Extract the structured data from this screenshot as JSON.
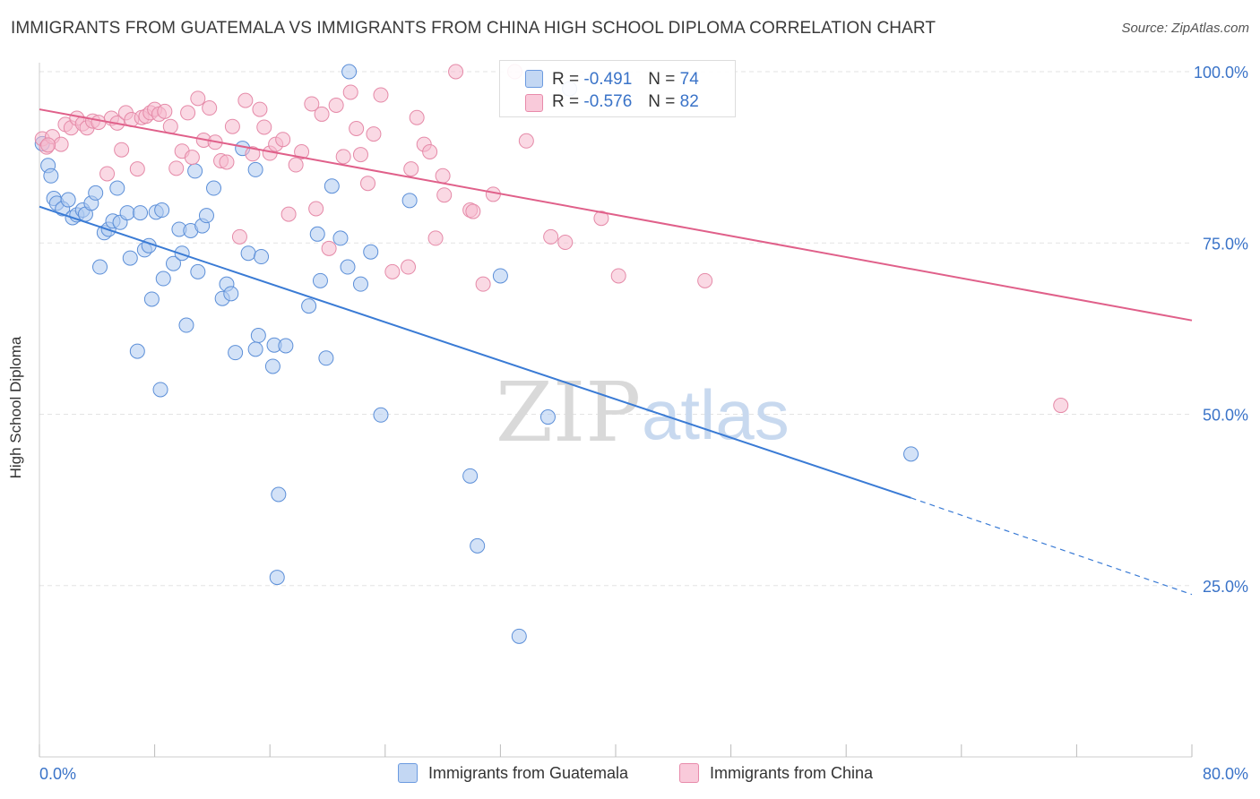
{
  "title": "IMMIGRANTS FROM GUATEMALA VS IMMIGRANTS FROM CHINA HIGH SCHOOL DIPLOMA CORRELATION CHART",
  "source": "Source: ZipAtlas.com",
  "watermark": {
    "zip": "ZIP",
    "atlas": "atlas"
  },
  "colors": {
    "blue": "#3a7bd5",
    "blue_fill": "#aecbf0",
    "pink": "#e0608a",
    "pink_fill": "#f6b9cd",
    "tick_label": "#3a73c8"
  },
  "legend": {
    "r_label": "R =",
    "n_label": "N =",
    "guatemala": {
      "r": "-0.491",
      "n": "74"
    },
    "china": {
      "r": "-0.576",
      "n": "82"
    }
  },
  "bottom_legend": {
    "guatemala": "Immigrants from Guatemala",
    "china": "Immigrants from China"
  },
  "chart_data": {
    "type": "scatter",
    "title": "IMMIGRANTS FROM GUATEMALA VS IMMIGRANTS FROM CHINA HIGH SCHOOL DIPLOMA CORRELATION CHART",
    "xlabel": "",
    "ylabel": "High School Diploma",
    "xlim": [
      0,
      80
    ],
    "ylim": [
      0,
      104
    ],
    "x_tick_labels": [
      "0.0%",
      "80.0%"
    ],
    "y_ticks": [
      25,
      50,
      75,
      100
    ],
    "y_tick_labels": [
      "25.0%",
      "50.0%",
      "75.0%",
      "100.0%"
    ],
    "grid": true,
    "legend_position": "top-center",
    "series": [
      {
        "name": "Immigrants from Guatemala",
        "color": "#3a7bd5",
        "trend": {
          "x0": 0,
          "y0": 80.3,
          "x1": 60.5,
          "y1": 37.8,
          "dashed_to_x": 80,
          "dashed_to_y": 23.7
        },
        "points": [
          [
            0.2,
            89.5
          ],
          [
            0.6,
            86.3
          ],
          [
            0.8,
            84.8
          ],
          [
            1.0,
            81.5
          ],
          [
            1.2,
            80.8
          ],
          [
            1.6,
            80.0
          ],
          [
            2.0,
            81.3
          ],
          [
            2.3,
            78.7
          ],
          [
            2.6,
            79.1
          ],
          [
            3.0,
            79.8
          ],
          [
            3.2,
            79.2
          ],
          [
            3.6,
            80.8
          ],
          [
            3.9,
            82.3
          ],
          [
            4.5,
            76.5
          ],
          [
            4.8,
            77.0
          ],
          [
            5.1,
            78.2
          ],
          [
            5.4,
            83.0
          ],
          [
            5.6,
            78.0
          ],
          [
            6.1,
            79.4
          ],
          [
            4.2,
            71.5
          ],
          [
            6.3,
            72.8
          ],
          [
            6.8,
            59.2
          ],
          [
            7.0,
            79.4
          ],
          [
            7.3,
            74.0
          ],
          [
            7.6,
            74.6
          ],
          [
            7.8,
            66.8
          ],
          [
            8.1,
            79.5
          ],
          [
            8.5,
            79.8
          ],
          [
            8.4,
            53.6
          ],
          [
            8.6,
            69.8
          ],
          [
            9.3,
            72.0
          ],
          [
            9.7,
            77.0
          ],
          [
            9.9,
            73.5
          ],
          [
            10.2,
            63.0
          ],
          [
            10.5,
            76.8
          ],
          [
            10.8,
            85.5
          ],
          [
            11.0,
            70.8
          ],
          [
            11.3,
            77.5
          ],
          [
            11.6,
            79.0
          ],
          [
            12.1,
            83.0
          ],
          [
            12.7,
            66.9
          ],
          [
            13.0,
            69.0
          ],
          [
            13.3,
            67.6
          ],
          [
            13.6,
            59.0
          ],
          [
            14.1,
            88.8
          ],
          [
            14.5,
            73.5
          ],
          [
            15.0,
            85.7
          ],
          [
            15.2,
            61.5
          ],
          [
            15.4,
            73.0
          ],
          [
            15.0,
            59.5
          ],
          [
            16.2,
            57.0
          ],
          [
            16.3,
            60.1
          ],
          [
            17.1,
            60.0
          ],
          [
            16.6,
            38.3
          ],
          [
            16.5,
            26.2
          ],
          [
            18.7,
            65.8
          ],
          [
            19.5,
            69.5
          ],
          [
            19.3,
            76.3
          ],
          [
            19.9,
            58.2
          ],
          [
            20.3,
            83.3
          ],
          [
            20.9,
            75.7
          ],
          [
            21.4,
            71.5
          ],
          [
            21.5,
            100.0
          ],
          [
            22.3,
            69.0
          ],
          [
            23.0,
            73.7
          ],
          [
            23.7,
            49.9
          ],
          [
            25.7,
            81.2
          ],
          [
            29.9,
            41.0
          ],
          [
            30.4,
            30.8
          ],
          [
            32.0,
            70.2
          ],
          [
            33.3,
            17.6
          ],
          [
            35.3,
            49.6
          ],
          [
            60.5,
            44.2
          ],
          [
            36.8,
            97.5
          ]
        ]
      },
      {
        "name": "Immigrants from China",
        "color": "#e0608a",
        "trend": {
          "x0": 0,
          "y0": 94.5,
          "x1": 80,
          "y1": 63.7
        },
        "points": [
          [
            0.2,
            90.2
          ],
          [
            0.5,
            89.0
          ],
          [
            0.9,
            90.5
          ],
          [
            1.5,
            89.4
          ],
          [
            1.8,
            92.3
          ],
          [
            2.2,
            91.8
          ],
          [
            2.6,
            93.2
          ],
          [
            3.0,
            92.4
          ],
          [
            3.3,
            91.8
          ],
          [
            3.7,
            92.8
          ],
          [
            4.1,
            92.6
          ],
          [
            4.7,
            85.1
          ],
          [
            5.0,
            93.2
          ],
          [
            5.4,
            92.5
          ],
          [
            5.7,
            88.6
          ],
          [
            6.0,
            94.0
          ],
          [
            6.4,
            93.0
          ],
          [
            6.8,
            85.8
          ],
          [
            7.1,
            93.3
          ],
          [
            7.4,
            93.5
          ],
          [
            7.7,
            94.0
          ],
          [
            8.0,
            94.5
          ],
          [
            8.3,
            93.8
          ],
          [
            8.7,
            94.2
          ],
          [
            9.1,
            92.0
          ],
          [
            9.5,
            85.9
          ],
          [
            9.9,
            88.4
          ],
          [
            10.3,
            94.0
          ],
          [
            10.6,
            87.5
          ],
          [
            11.0,
            96.1
          ],
          [
            11.4,
            90.0
          ],
          [
            11.8,
            94.7
          ],
          [
            12.2,
            89.7
          ],
          [
            12.6,
            87.0
          ],
          [
            13.0,
            86.8
          ],
          [
            13.4,
            92.0
          ],
          [
            13.9,
            75.9
          ],
          [
            14.3,
            95.8
          ],
          [
            14.8,
            88.0
          ],
          [
            15.3,
            94.5
          ],
          [
            15.6,
            91.9
          ],
          [
            16.0,
            88.1
          ],
          [
            16.4,
            89.4
          ],
          [
            16.9,
            90.1
          ],
          [
            17.3,
            79.2
          ],
          [
            17.8,
            86.4
          ],
          [
            18.2,
            88.3
          ],
          [
            18.9,
            95.3
          ],
          [
            19.2,
            80.0
          ],
          [
            19.6,
            93.8
          ],
          [
            20.1,
            74.2
          ],
          [
            20.6,
            95.1
          ],
          [
            21.1,
            87.6
          ],
          [
            21.6,
            97.0
          ],
          [
            22.0,
            91.7
          ],
          [
            22.3,
            87.9
          ],
          [
            22.8,
            83.7
          ],
          [
            23.2,
            90.9
          ],
          [
            23.7,
            96.6
          ],
          [
            24.5,
            70.8
          ],
          [
            25.6,
            71.5
          ],
          [
            25.8,
            85.8
          ],
          [
            26.2,
            93.3
          ],
          [
            26.7,
            89.4
          ],
          [
            27.1,
            88.3
          ],
          [
            27.5,
            75.7
          ],
          [
            28.0,
            84.8
          ],
          [
            28.1,
            82.0
          ],
          [
            28.9,
            100.0
          ],
          [
            29.9,
            79.8
          ],
          [
            30.1,
            79.6
          ],
          [
            30.8,
            69.0
          ],
          [
            31.5,
            82.1
          ],
          [
            33.0,
            100.0
          ],
          [
            33.8,
            89.9
          ],
          [
            35.5,
            75.9
          ],
          [
            36.5,
            75.1
          ],
          [
            39.0,
            78.6
          ],
          [
            40.2,
            70.2
          ],
          [
            46.2,
            69.5
          ],
          [
            70.9,
            51.3
          ],
          [
            0.6,
            89.3
          ]
        ]
      }
    ]
  }
}
